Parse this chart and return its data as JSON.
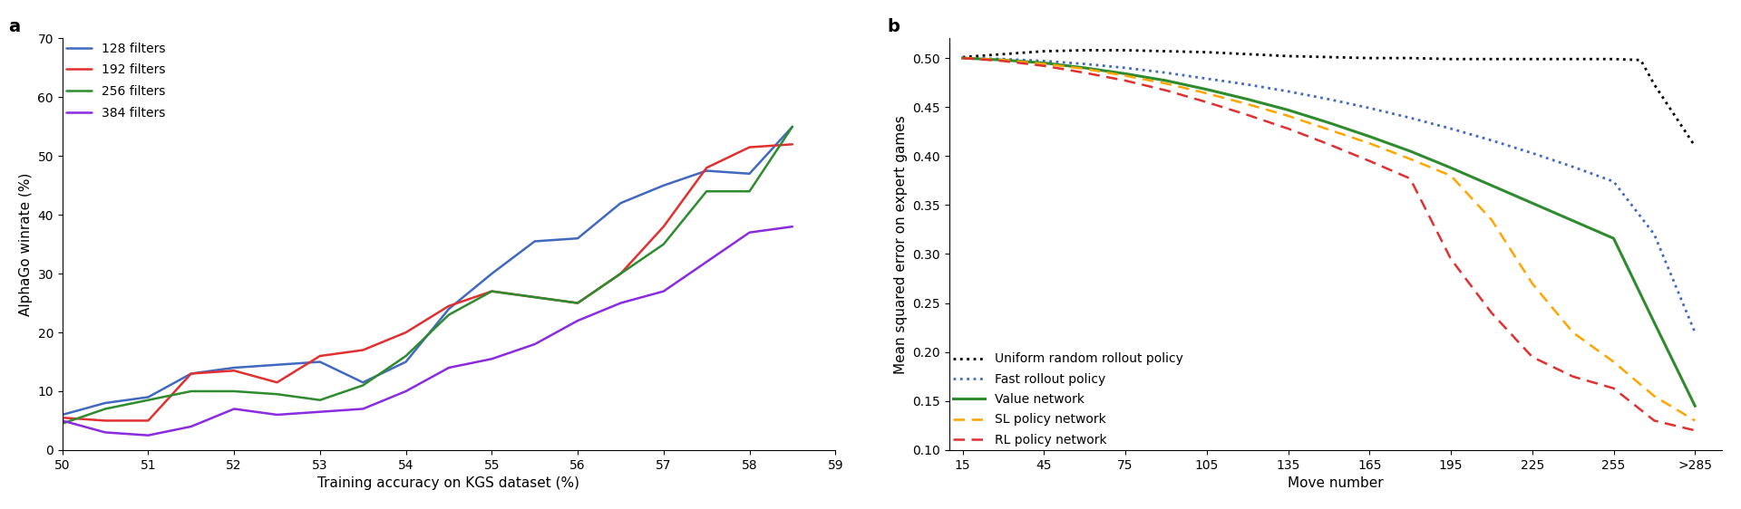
{
  "panel_a": {
    "title": "a",
    "xlabel": "Training accuracy on KGS dataset (%)",
    "ylabel": "AlphaGo winrate (%)",
    "ylim": [
      0,
      70
    ],
    "xlim": [
      50,
      59
    ],
    "xticks": [
      50,
      51,
      52,
      53,
      54,
      55,
      56,
      57,
      58,
      59
    ],
    "yticks": [
      0,
      10,
      20,
      30,
      40,
      50,
      60,
      70
    ],
    "series": {
      "128 filters": {
        "color": "#4169bf",
        "x": [
          50.0,
          50.5,
          51.0,
          51.5,
          52.0,
          52.5,
          53.0,
          53.5,
          54.0,
          54.5,
          55.0,
          55.5,
          56.0,
          56.5,
          57.0,
          57.5,
          58.0,
          58.5
        ],
        "y": [
          6.0,
          8.0,
          9.0,
          13.0,
          14.0,
          14.5,
          15.0,
          11.5,
          15.0,
          24.0,
          30.0,
          35.5,
          36.0,
          42.0,
          45.0,
          47.5,
          47.0,
          55.0
        ]
      },
      "192 filters": {
        "color": "#e03030",
        "x": [
          50.0,
          50.5,
          51.0,
          51.5,
          52.0,
          52.5,
          53.0,
          53.5,
          54.0,
          54.5,
          55.0,
          55.5,
          56.0,
          56.5,
          57.0,
          57.5,
          58.0,
          58.5
        ],
        "y": [
          5.5,
          5.0,
          5.0,
          13.0,
          13.5,
          11.5,
          16.0,
          17.0,
          20.0,
          24.5,
          27.0,
          26.0,
          25.0,
          30.0,
          38.0,
          48.0,
          51.5,
          52.0
        ]
      },
      "256 filters": {
        "color": "#2e8b2e",
        "x": [
          50.0,
          50.5,
          51.0,
          51.5,
          52.0,
          52.5,
          53.0,
          53.5,
          54.0,
          54.5,
          55.0,
          55.5,
          56.0,
          56.5,
          57.0,
          57.5,
          58.0,
          58.5
        ],
        "y": [
          4.5,
          7.0,
          8.5,
          10.0,
          10.0,
          9.5,
          8.5,
          11.0,
          16.0,
          23.0,
          27.0,
          26.0,
          25.0,
          30.0,
          35.0,
          44.0,
          44.0,
          55.0
        ]
      },
      "384 filters": {
        "color": "#8b2be0",
        "x": [
          50.0,
          50.5,
          51.0,
          51.5,
          52.0,
          52.5,
          53.0,
          53.5,
          54.0,
          54.5,
          55.0,
          55.5,
          56.0,
          56.5,
          57.0,
          57.5,
          58.0,
          58.5
        ],
        "y": [
          5.0,
          3.0,
          2.5,
          4.0,
          7.0,
          6.0,
          6.5,
          7.0,
          10.0,
          14.0,
          15.5,
          18.0,
          22.0,
          25.0,
          27.0,
          32.0,
          37.0,
          38.0
        ]
      }
    }
  },
  "panel_b": {
    "title": "b",
    "xlabel": "Move number",
    "ylabel": "Mean squared error on expert games",
    "ylim": [
      0.1,
      0.52
    ],
    "yticks": [
      0.1,
      0.15,
      0.2,
      0.25,
      0.3,
      0.35,
      0.4,
      0.45,
      0.5
    ],
    "xtick_labels": [
      "15",
      "45",
      "75",
      "105",
      "135",
      "165",
      "195",
      "225",
      "255",
      ">285"
    ],
    "x_numeric": [
      15,
      45,
      75,
      105,
      135,
      165,
      195,
      225,
      255,
      285
    ],
    "series": {
      "Uniform random rollout policy": {
        "color": "#000000",
        "linestyle": "dotted",
        "linewidth": 2.0,
        "x": [
          15,
          30,
          45,
          60,
          75,
          90,
          105,
          120,
          135,
          150,
          165,
          180,
          195,
          210,
          225,
          240,
          255,
          265,
          270,
          285
        ],
        "y": [
          0.501,
          0.504,
          0.507,
          0.508,
          0.508,
          0.507,
          0.506,
          0.504,
          0.502,
          0.501,
          0.5,
          0.5,
          0.499,
          0.499,
          0.499,
          0.499,
          0.499,
          0.498,
          0.473,
          0.41
        ]
      },
      "Fast rollout policy": {
        "color": "#4169bf",
        "linestyle": "dotted",
        "linewidth": 2.0,
        "x": [
          15,
          30,
          45,
          60,
          75,
          90,
          105,
          120,
          135,
          150,
          165,
          180,
          195,
          210,
          225,
          240,
          255,
          270,
          285
        ],
        "y": [
          0.5,
          0.499,
          0.497,
          0.494,
          0.49,
          0.485,
          0.479,
          0.473,
          0.466,
          0.458,
          0.449,
          0.439,
          0.428,
          0.416,
          0.403,
          0.389,
          0.374,
          0.32,
          0.22
        ]
      },
      "Value network": {
        "color": "#2e8b2e",
        "linestyle": "solid",
        "linewidth": 2.2,
        "x": [
          15,
          30,
          45,
          60,
          75,
          90,
          105,
          120,
          135,
          150,
          165,
          180,
          195,
          210,
          225,
          240,
          255,
          270,
          285
        ],
        "y": [
          0.5,
          0.498,
          0.495,
          0.49,
          0.484,
          0.477,
          0.468,
          0.458,
          0.447,
          0.434,
          0.42,
          0.405,
          0.388,
          0.37,
          0.352,
          0.334,
          0.316,
          0.23,
          0.145
        ]
      },
      "SL policy network": {
        "color": "#ffa500",
        "linestyle": "dashed",
        "linewidth": 1.8,
        "x": [
          15,
          30,
          45,
          60,
          75,
          90,
          105,
          120,
          135,
          150,
          165,
          180,
          195,
          210,
          225,
          240,
          255,
          270,
          285
        ],
        "y": [
          0.5,
          0.498,
          0.494,
          0.489,
          0.482,
          0.474,
          0.464,
          0.453,
          0.441,
          0.427,
          0.413,
          0.397,
          0.38,
          0.335,
          0.27,
          0.22,
          0.19,
          0.155,
          0.13
        ]
      },
      "RL policy network": {
        "color": "#e03030",
        "linestyle": "dashed",
        "linewidth": 1.8,
        "x": [
          15,
          30,
          45,
          60,
          75,
          90,
          105,
          120,
          135,
          150,
          165,
          180,
          195,
          210,
          225,
          240,
          255,
          270,
          285
        ],
        "y": [
          0.5,
          0.497,
          0.492,
          0.485,
          0.477,
          0.467,
          0.455,
          0.442,
          0.428,
          0.412,
          0.395,
          0.377,
          0.295,
          0.24,
          0.195,
          0.175,
          0.163,
          0.13,
          0.12
        ]
      }
    }
  },
  "background_color": "#ffffff"
}
